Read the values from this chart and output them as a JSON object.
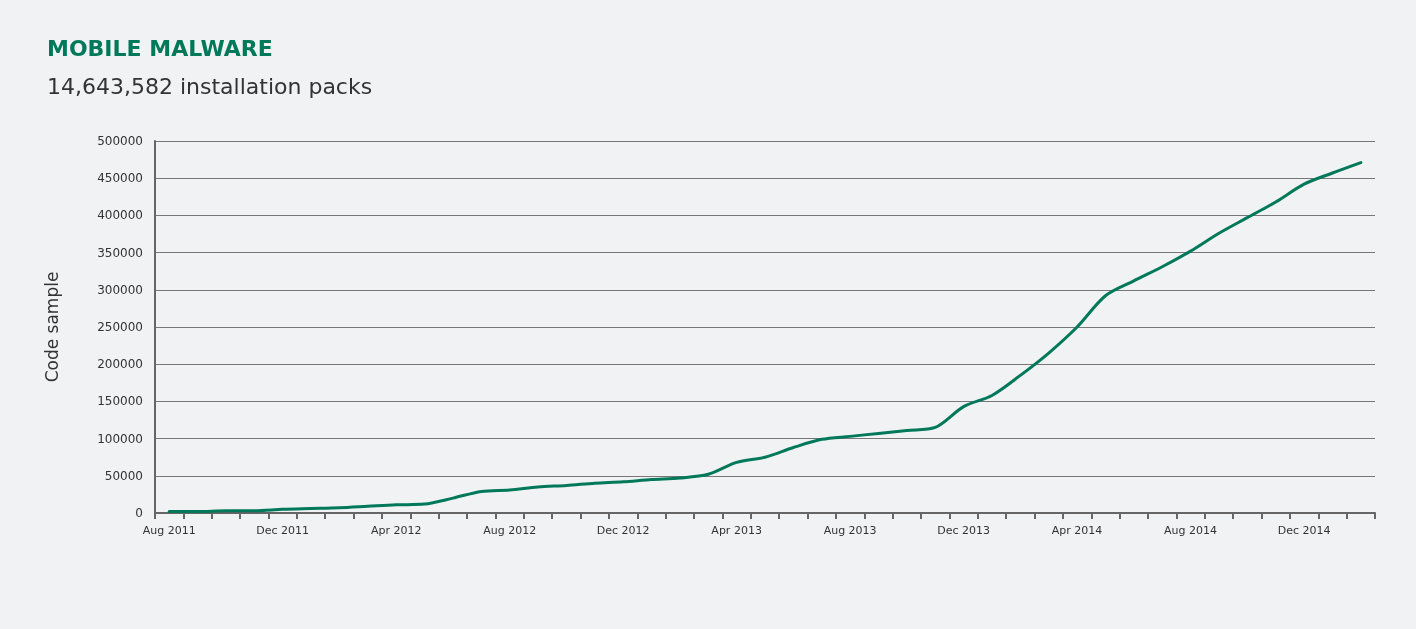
{
  "chart_data": {
    "type": "line",
    "title": "MOBILE MALWARE",
    "subtitle": "14,643,582 installation packs",
    "ylabel": "Code sample",
    "categories": [
      "Aug 2011",
      null,
      null,
      null,
      "Dec 2011",
      null,
      null,
      null,
      "Apr 2012",
      null,
      null,
      null,
      "Aug 2012",
      null,
      null,
      null,
      "Dec 2012",
      null,
      null,
      null,
      "Apr 2013",
      null,
      null,
      null,
      "Aug 2013",
      null,
      null,
      null,
      "Dec 2013",
      null,
      null,
      null,
      "Apr 2014",
      null,
      null,
      null,
      "Aug 2014",
      null,
      null,
      null,
      "Dec 2014",
      null,
      null
    ],
    "series": [
      {
        "color": "#00785a",
        "values": [
          2000,
          2000,
          3000,
          3000,
          5000,
          6000,
          7000,
          9000,
          11000,
          12000,
          20000,
          29000,
          31000,
          35000,
          37000,
          40000,
          42000,
          45000,
          47000,
          52000,
          68000,
          75000,
          88000,
          99000,
          103000,
          107000,
          111000,
          115000,
          143000,
          158000,
          185000,
          215000,
          250000,
          292000,
          312000,
          331000,
          352000,
          376000,
          397000,
          418000,
          442000,
          457000,
          471000
        ]
      }
    ],
    "ylim": [
      0,
      500000
    ],
    "yticks": [
      0,
      50000,
      100000,
      150000,
      200000,
      250000,
      300000,
      350000,
      400000,
      450000,
      500000
    ],
    "grid": "y",
    "marker": "none",
    "line_style": "solid"
  }
}
